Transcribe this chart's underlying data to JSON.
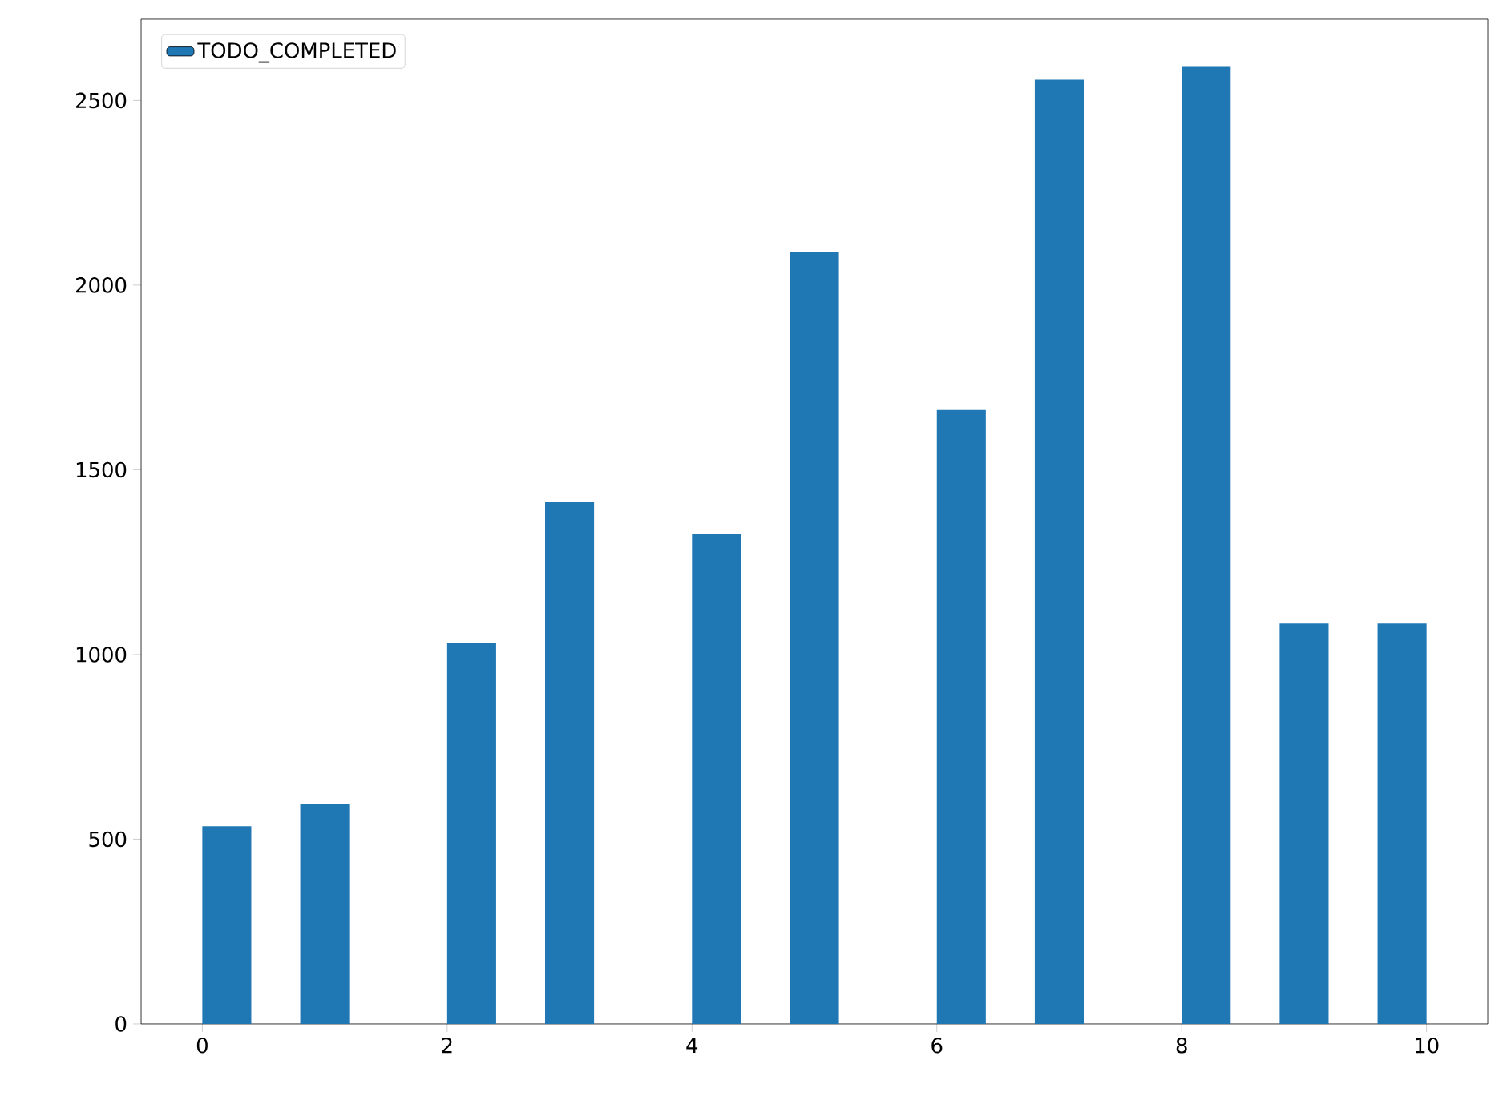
{
  "chart_data": {
    "type": "histogram",
    "bins": [
      0,
      0.4,
      0.8,
      1.2,
      1.6,
      2.0,
      2.4,
      2.8,
      3.2,
      3.6,
      4.0,
      4.4,
      4.8,
      5.2,
      5.6,
      6.0,
      6.4,
      6.8,
      7.2,
      7.6,
      8.0,
      8.4,
      8.8,
      9.2,
      9.6,
      10.0
    ],
    "series": [
      {
        "name": "TODO_COMPLETED",
        "color": "#1f77b4",
        "values": [
          535,
          0,
          596,
          0,
          0,
          1032,
          0,
          1412,
          0,
          0,
          1326,
          0,
          2090,
          0,
          0,
          1662,
          0,
          2556,
          0,
          0,
          2591,
          0,
          1084,
          0,
          1084
        ]
      }
    ],
    "xlim": [
      -0.5,
      10.5
    ],
    "ylim": [
      0,
      2720
    ],
    "xticks": [
      0,
      2,
      4,
      6,
      8,
      10
    ],
    "yticks": [
      0,
      500,
      1000,
      1500,
      2000,
      2500
    ],
    "legend": "top left",
    "grid": false
  }
}
